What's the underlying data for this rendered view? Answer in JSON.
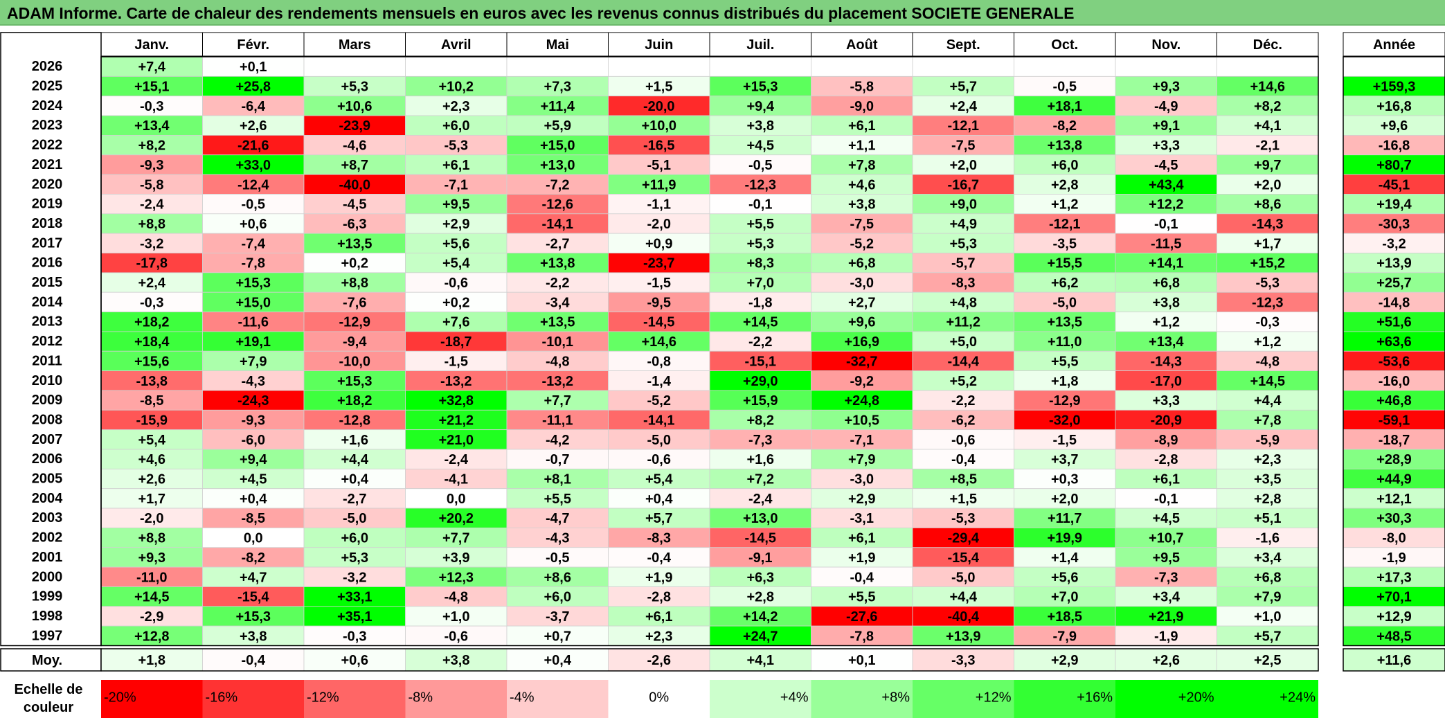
{
  "title": "ADAM Informe. Carte de chaleur des rendements mensuels en euros avec les revenus connus distribués du placement SOCIETE GENERALE",
  "chart_data": {
    "type": "heatmap",
    "title": "ADAM Informe. Carte de chaleur des rendements mensuels en euros avec les revenus connus distribués du placement SOCIETE GENERALE",
    "columns": [
      "Janv.",
      "Févr.",
      "Mars",
      "Avril",
      "Mai",
      "Juin",
      "Juil.",
      "Août",
      "Sept.",
      "Oct.",
      "Nov.",
      "Déc."
    ],
    "year_header": "Année",
    "rows": [
      {
        "year": "2026",
        "months": [
          "+7,4",
          "+0,1",
          "",
          "",
          "",
          "",
          "",
          "",
          "",
          "",
          "",
          ""
        ],
        "annual": ""
      },
      {
        "year": "2025",
        "months": [
          "+15,1",
          "+25,8",
          "+5,3",
          "+10,2",
          "+7,3",
          "+1,5",
          "+15,3",
          "-5,8",
          "+5,7",
          "-0,5",
          "+9,3",
          "+14,6"
        ],
        "annual": "+159,3"
      },
      {
        "year": "2024",
        "months": [
          "-0,3",
          "-6,4",
          "+10,6",
          "+2,3",
          "+11,4",
          "-20,0",
          "+9,4",
          "-9,0",
          "+2,4",
          "+18,1",
          "-4,9",
          "+8,2"
        ],
        "annual": "+16,8"
      },
      {
        "year": "2023",
        "months": [
          "+13,4",
          "+2,6",
          "-23,9",
          "+6,0",
          "+5,9",
          "+10,0",
          "+3,8",
          "+6,1",
          "-12,1",
          "-8,2",
          "+9,1",
          "+4,1"
        ],
        "annual": "+9,6"
      },
      {
        "year": "2022",
        "months": [
          "+8,2",
          "-21,6",
          "-4,6",
          "-5,3",
          "+15,0",
          "-16,5",
          "+4,5",
          "+1,1",
          "-7,5",
          "+13,8",
          "+3,3",
          "-2,1"
        ],
        "annual": "-16,8"
      },
      {
        "year": "2021",
        "months": [
          "-9,3",
          "+33,0",
          "+8,7",
          "+6,1",
          "+13,0",
          "-5,1",
          "-0,5",
          "+7,8",
          "+2,0",
          "+6,0",
          "-4,5",
          "+9,7"
        ],
        "annual": "+80,7"
      },
      {
        "year": "2020",
        "months": [
          "-5,8",
          "-12,4",
          "-40,0",
          "-7,1",
          "-7,2",
          "+11,9",
          "-12,3",
          "+4,6",
          "-16,7",
          "+2,8",
          "+43,4",
          "+2,0"
        ],
        "annual": "-45,1"
      },
      {
        "year": "2019",
        "months": [
          "-2,4",
          "-0,5",
          "-4,5",
          "+9,5",
          "-12,6",
          "-1,1",
          "-0,1",
          "+3,8",
          "+9,0",
          "+1,2",
          "+12,2",
          "+8,6"
        ],
        "annual": "+19,4"
      },
      {
        "year": "2018",
        "months": [
          "+8,8",
          "+0,6",
          "-6,3",
          "+2,9",
          "-14,1",
          "-2,0",
          "+5,5",
          "-7,5",
          "+4,9",
          "-12,1",
          "-0,1",
          "-14,3"
        ],
        "annual": "-30,3"
      },
      {
        "year": "2017",
        "months": [
          "-3,2",
          "-7,4",
          "+13,5",
          "+5,6",
          "-2,7",
          "+0,9",
          "+5,3",
          "-5,2",
          "+5,3",
          "-3,5",
          "-11,5",
          "+1,7"
        ],
        "annual": "-3,2"
      },
      {
        "year": "2016",
        "months": [
          "-17,8",
          "-7,8",
          "+0,2",
          "+5,4",
          "+13,8",
          "-23,7",
          "+8,3",
          "+6,8",
          "-5,7",
          "+15,5",
          "+14,1",
          "+15,2"
        ],
        "annual": "+13,9"
      },
      {
        "year": "2015",
        "months": [
          "+2,4",
          "+15,3",
          "+8,8",
          "-0,6",
          "-2,2",
          "-1,5",
          "+7,0",
          "-3,0",
          "-8,3",
          "+6,2",
          "+6,8",
          "-5,3"
        ],
        "annual": "+25,7"
      },
      {
        "year": "2014",
        "months": [
          "-0,3",
          "+15,0",
          "-7,6",
          "+0,2",
          "-3,4",
          "-9,5",
          "-1,8",
          "+2,7",
          "+4,8",
          "-5,0",
          "+3,8",
          "-12,3"
        ],
        "annual": "-14,8"
      },
      {
        "year": "2013",
        "months": [
          "+18,2",
          "-11,6",
          "-12,9",
          "+7,6",
          "+13,5",
          "-14,5",
          "+14,5",
          "+9,6",
          "+11,2",
          "+13,5",
          "+1,2",
          "-0,3"
        ],
        "annual": "+51,6"
      },
      {
        "year": "2012",
        "months": [
          "+18,4",
          "+19,1",
          "-9,4",
          "-18,7",
          "-10,1",
          "+14,6",
          "-2,2",
          "+16,9",
          "+5,0",
          "+11,0",
          "+13,4",
          "+1,2"
        ],
        "annual": "+63,6"
      },
      {
        "year": "2011",
        "months": [
          "+15,6",
          "+7,9",
          "-10,0",
          "-1,5",
          "-4,8",
          "-0,8",
          "-15,1",
          "-32,7",
          "-14,4",
          "+5,5",
          "-14,3",
          "-4,8"
        ],
        "annual": "-53,6"
      },
      {
        "year": "2010",
        "months": [
          "-13,8",
          "-4,3",
          "+15,3",
          "-13,2",
          "-13,2",
          "-1,4",
          "+29,0",
          "-9,2",
          "+5,2",
          "+1,8",
          "-17,0",
          "+14,5"
        ],
        "annual": "-16,0"
      },
      {
        "year": "2009",
        "months": [
          "-8,5",
          "-24,3",
          "+18,2",
          "+32,8",
          "+7,7",
          "-5,2",
          "+15,9",
          "+24,8",
          "-2,2",
          "-12,9",
          "+3,3",
          "+4,4"
        ],
        "annual": "+46,8"
      },
      {
        "year": "2008",
        "months": [
          "-15,9",
          "-9,3",
          "-12,8",
          "+21,2",
          "-11,1",
          "-14,1",
          "+8,2",
          "+10,5",
          "-6,2",
          "-32,0",
          "-20,9",
          "+7,8"
        ],
        "annual": "-59,1"
      },
      {
        "year": "2007",
        "months": [
          "+5,4",
          "-6,0",
          "+1,6",
          "+21,0",
          "-4,2",
          "-5,0",
          "-7,3",
          "-7,1",
          "-0,6",
          "-1,5",
          "-8,9",
          "-5,9"
        ],
        "annual": "-18,7"
      },
      {
        "year": "2006",
        "months": [
          "+4,6",
          "+9,4",
          "+4,4",
          "-2,4",
          "-0,7",
          "-0,6",
          "+1,6",
          "+7,9",
          "-0,4",
          "+3,7",
          "-2,8",
          "+2,3"
        ],
        "annual": "+28,9"
      },
      {
        "year": "2005",
        "months": [
          "+2,6",
          "+4,5",
          "+0,4",
          "-4,1",
          "+8,1",
          "+5,4",
          "+7,2",
          "-3,0",
          "+8,5",
          "+0,3",
          "+6,1",
          "+3,5"
        ],
        "annual": "+44,9"
      },
      {
        "year": "2004",
        "months": [
          "+1,7",
          "+0,4",
          "-2,7",
          "0,0",
          "+5,5",
          "+0,4",
          "-2,4",
          "+2,9",
          "+1,5",
          "+2,0",
          "-0,1",
          "+2,8"
        ],
        "annual": "+12,1"
      },
      {
        "year": "2003",
        "months": [
          "-2,0",
          "-8,5",
          "-5,0",
          "+20,2",
          "-4,7",
          "+5,7",
          "+13,0",
          "-3,1",
          "-5,3",
          "+11,7",
          "+4,5",
          "+5,1"
        ],
        "annual": "+30,3"
      },
      {
        "year": "2002",
        "months": [
          "+8,8",
          "0,0",
          "+6,0",
          "+7,7",
          "-4,3",
          "-8,3",
          "-14,5",
          "+6,1",
          "-29,4",
          "+19,9",
          "+10,7",
          "-1,6"
        ],
        "annual": "-8,0"
      },
      {
        "year": "2001",
        "months": [
          "+9,3",
          "-8,2",
          "+5,3",
          "+3,9",
          "-0,5",
          "-0,4",
          "-9,1",
          "+1,9",
          "-15,4",
          "+1,4",
          "+9,5",
          "+3,4"
        ],
        "annual": "-1,9"
      },
      {
        "year": "2000",
        "months": [
          "-11,0",
          "+4,7",
          "-3,2",
          "+12,3",
          "+8,6",
          "+1,9",
          "+6,3",
          "-0,4",
          "-5,0",
          "+5,6",
          "-7,3",
          "+6,8"
        ],
        "annual": "+17,3"
      },
      {
        "year": "1999",
        "months": [
          "+14,5",
          "-15,4",
          "+33,1",
          "-4,8",
          "+6,0",
          "-2,8",
          "+2,8",
          "+5,5",
          "+4,4",
          "+7,0",
          "+3,4",
          "+7,9"
        ],
        "annual": "+70,1"
      },
      {
        "year": "1998",
        "months": [
          "-2,9",
          "+15,3",
          "+35,1",
          "+1,0",
          "-3,7",
          "+6,1",
          "+14,2",
          "-27,6",
          "-40,4",
          "+18,5",
          "+21,9",
          "+1,0"
        ],
        "annual": "+12,9"
      },
      {
        "year": "1997",
        "months": [
          "+12,8",
          "+3,8",
          "-0,3",
          "-0,6",
          "+0,7",
          "+2,3",
          "+24,7",
          "-7,8",
          "+13,9",
          "-7,9",
          "-1,9",
          "+5,7"
        ],
        "annual": "+48,5"
      }
    ],
    "average": {
      "label": "Moy.",
      "months": [
        "+1,8",
        "-0,4",
        "+0,6",
        "+3,8",
        "+0,4",
        "-2,6",
        "+4,1",
        "+0,1",
        "-3,3",
        "+2,9",
        "+2,6",
        "+2,5"
      ],
      "annual": "+11,6"
    },
    "color_scale": {
      "label_line1": "Echelle de",
      "label_line2": "couleur",
      "stops": [
        "-20%",
        "-16%",
        "-12%",
        "-8%",
        "-4%",
        "0%",
        "+4%",
        "+8%",
        "+12%",
        "+16%",
        "+20%",
        "+24%"
      ],
      "stop_values": [
        -20,
        -16,
        -12,
        -8,
        -4,
        0,
        4,
        8,
        12,
        16,
        20,
        24
      ]
    },
    "colors": {
      "negative_max": "#ff0000",
      "neutral": "#ffffff",
      "positive_max": "#00ff00",
      "title_bar": "#80d080"
    }
  }
}
